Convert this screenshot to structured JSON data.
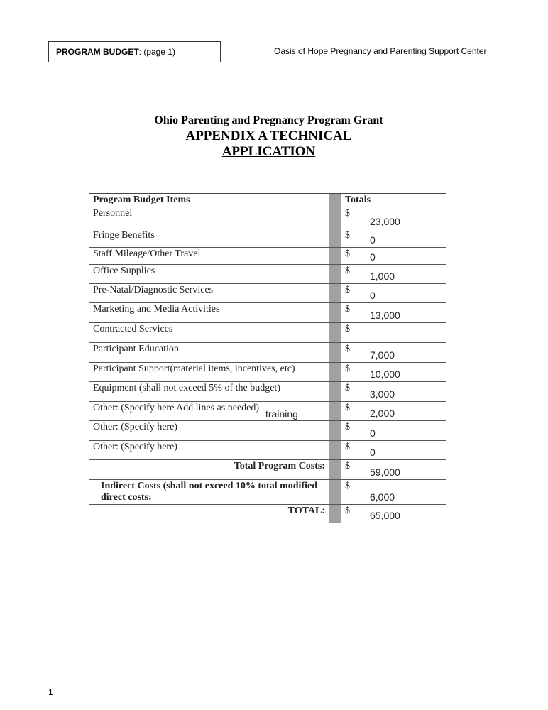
{
  "header": {
    "label": "PROGRAM BUDGET",
    "page": ": (page 1)",
    "organization": "Oasis of Hope Pregnancy and Parenting Support Center"
  },
  "title": {
    "line1": "Ohio Parenting and Pregnancy Program Grant",
    "line2": "APPENDIX A TECHNICAL",
    "line3": "APPLICATION"
  },
  "table": {
    "headers": [
      "Program Budget Items",
      "Totals"
    ],
    "rows": [
      {
        "item": "Personnel",
        "currency": "$",
        "total": "23,000"
      },
      {
        "item": "Fringe Benefits",
        "currency": "$",
        "total": "0"
      },
      {
        "item": "Staff Mileage/Other Travel",
        "currency": "$",
        "total": "0"
      },
      {
        "item": "Office Supplies",
        "currency": "$",
        "total": "1,000"
      },
      {
        "item": "Pre-Natal/Diagnostic Services",
        "currency": "$",
        "total": "0"
      },
      {
        "item": "Marketing and Media Activities",
        "currency": "$",
        "total": "13,000"
      },
      {
        "item": "Contracted Services",
        "currency": "$",
        "total": ""
      },
      {
        "item": "Participant Education",
        "currency": "$",
        "total": "7,000"
      },
      {
        "item": "Participant Support(material items, incentives, etc)",
        "currency": "$",
        "total": "10,000"
      },
      {
        "item": "Equipment (shall not exceed 5% of the budget)",
        "currency": "$",
        "total": "3,000"
      },
      {
        "item": "Other: (Specify here Add lines as needed)",
        "note": "training",
        "currency": "$",
        "total": "2,000"
      },
      {
        "item": "Other: (Specify here)",
        "currency": "$",
        "total": "0"
      },
      {
        "item": "Other: (Specify here)",
        "currency": "$",
        "total": "0"
      },
      {
        "item": "Total Program Costs:",
        "currency": "$",
        "total": "59,000"
      },
      {
        "item": "Indirect Costs (shall not exceed 10% total modified direct costs:",
        "currency": "$",
        "total": "6,000"
      },
      {
        "item": "TOTAL:",
        "currency": "$",
        "total": "65,000"
      }
    ]
  },
  "footer": {
    "page_number": "1"
  }
}
